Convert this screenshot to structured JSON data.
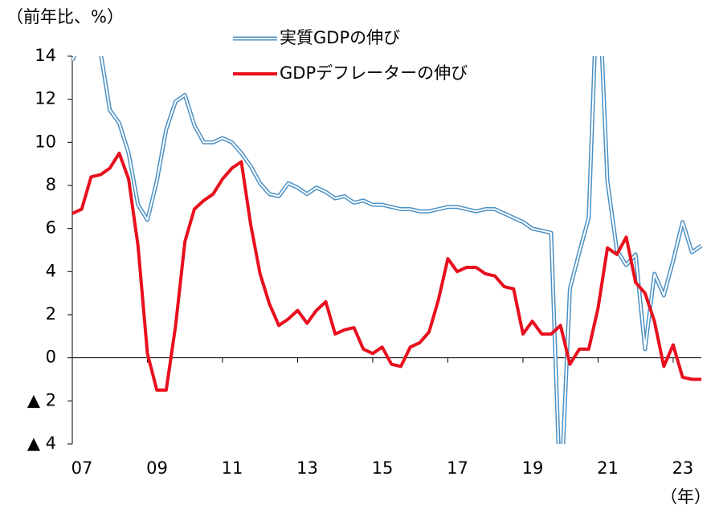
{
  "chart_data": {
    "type": "line",
    "ylabel": "（前年比、%）",
    "xlabel": "（年）",
    "x": [
      2007,
      2007.25,
      2007.5,
      2007.75,
      2008,
      2008.25,
      2008.5,
      2008.75,
      2009,
      2009.25,
      2009.5,
      2009.75,
      2010,
      2010.25,
      2010.5,
      2010.75,
      2011,
      2011.25,
      2011.5,
      2011.75,
      2012,
      2012.25,
      2012.5,
      2012.75,
      2013,
      2013.25,
      2013.5,
      2013.75,
      2014,
      2014.25,
      2014.5,
      2014.75,
      2015,
      2015.25,
      2015.5,
      2015.75,
      2016,
      2016.25,
      2016.5,
      2016.75,
      2017,
      2017.25,
      2017.5,
      2017.75,
      2018,
      2018.25,
      2018.5,
      2018.75,
      2019,
      2019.25,
      2019.5,
      2019.75,
      2020,
      2020.25,
      2020.5,
      2020.75,
      2021,
      2021.25,
      2021.5,
      2021.75,
      2022,
      2022.25,
      2022.5,
      2022.75,
      2023,
      2023.25,
      2023.5,
      2023.75
    ],
    "series": [
      {
        "name": "実質GDPの伸び",
        "color": "#4a90c4",
        "style": "double",
        "values": [
          13.8,
          14.8,
          14.4,
          14.2,
          11.5,
          10.9,
          9.5,
          7.1,
          6.4,
          8.2,
          10.6,
          11.9,
          12.2,
          10.8,
          10.0,
          10.0,
          10.2,
          10.0,
          9.5,
          8.9,
          8.1,
          7.6,
          7.5,
          8.1,
          7.9,
          7.6,
          7.9,
          7.7,
          7.4,
          7.5,
          7.2,
          7.3,
          7.1,
          7.1,
          7.0,
          6.9,
          6.9,
          6.8,
          6.8,
          6.9,
          7.0,
          7.0,
          6.9,
          6.8,
          6.9,
          6.9,
          6.7,
          6.5,
          6.3,
          6.0,
          5.9,
          5.8,
          -6.8,
          3.2,
          4.9,
          6.5,
          18.3,
          8.2,
          5.0,
          4.3,
          4.8,
          0.4,
          3.9,
          2.9,
          4.5,
          6.3,
          4.9,
          5.2
        ]
      },
      {
        "name": "GDPデフレーターの伸び",
        "color": "#e8101e",
        "style": "solid",
        "values": [
          6.7,
          6.9,
          8.4,
          8.5,
          8.8,
          9.5,
          8.3,
          5.2,
          0.2,
          -1.5,
          -1.5,
          1.5,
          5.4,
          6.9,
          7.3,
          7.6,
          8.3,
          8.8,
          9.1,
          6.2,
          3.9,
          2.5,
          1.5,
          1.8,
          2.2,
          1.6,
          2.2,
          2.6,
          1.1,
          1.3,
          1.4,
          0.4,
          0.2,
          0.5,
          -0.3,
          -0.4,
          0.5,
          0.7,
          1.2,
          2.7,
          4.6,
          4.0,
          4.2,
          4.2,
          3.9,
          3.8,
          3.3,
          3.2,
          1.1,
          1.7,
          1.1,
          1.1,
          1.5,
          -0.3,
          0.4,
          0.4,
          2.3,
          5.1,
          4.8,
          5.6,
          3.5,
          3.0,
          1.7,
          -0.4,
          0.6,
          -0.9,
          -1.0,
          -1.0
        ]
      }
    ],
    "xlim": [
      2007,
      2023.75
    ],
    "xticks": [
      {
        "value": 2007,
        "label": "07"
      },
      {
        "value": 2009,
        "label": "09"
      },
      {
        "value": 2011,
        "label": "11"
      },
      {
        "value": 2013,
        "label": "13"
      },
      {
        "value": 2015,
        "label": "15"
      },
      {
        "value": 2017,
        "label": "17"
      },
      {
        "value": 2019,
        "label": "19"
      },
      {
        "value": 2021,
        "label": "21"
      },
      {
        "value": 2023,
        "label": "23"
      }
    ],
    "ylim": [
      -4,
      14
    ],
    "yticks": [
      {
        "value": -4,
        "label": "▲ 4"
      },
      {
        "value": -2,
        "label": "▲ 2"
      },
      0,
      2,
      4,
      6,
      8,
      10,
      12,
      14
    ],
    "grid": false
  }
}
